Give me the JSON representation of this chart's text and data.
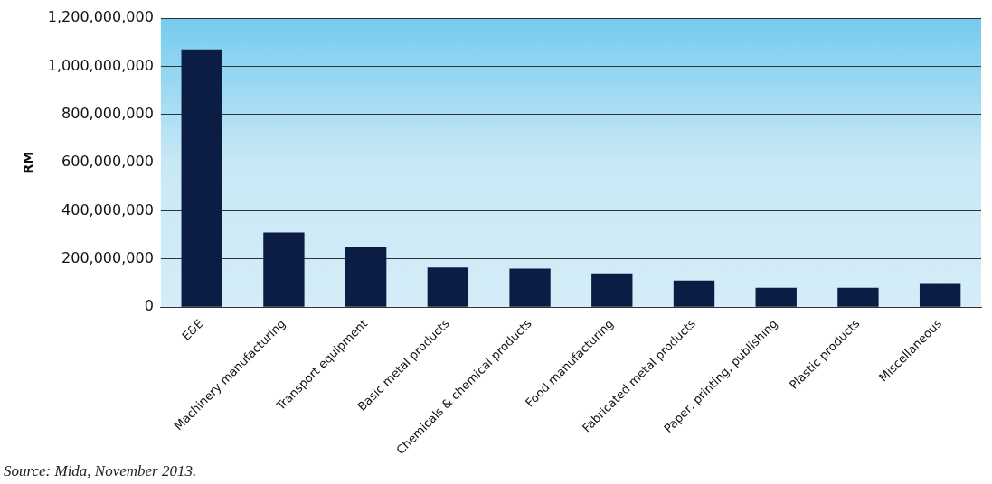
{
  "chart_data": {
    "type": "bar",
    "ylabel": "RM",
    "categories": [
      "E&E",
      "Machinery manufacturing",
      "Transport equipment",
      "Basic metal products",
      "Chemicals & chemical products",
      "Food manufacturing",
      "Fabricated metal products",
      "Paper, printing, publishing",
      "Plastic products",
      "Miscellaneous"
    ],
    "values": [
      1070000000,
      310000000,
      250000000,
      165000000,
      160000000,
      140000000,
      110000000,
      80000000,
      80000000,
      100000000
    ],
    "color": "#0b1d45",
    "ylim": [
      0,
      1200000000
    ],
    "yticks": [
      0,
      {
        "value": 200000000,
        "label": "200,000,000"
      },
      {
        "value": 400000000,
        "label": "400,000,000"
      },
      {
        "value": 600000000,
        "label": "600,000,000"
      },
      {
        "value": 800000000,
        "label": "800,000,000"
      },
      {
        "value": 1000000000,
        "label": "1,000,000,000"
      },
      {
        "value": 1200000000,
        "label": "1,200,000,000"
      }
    ],
    "grid": "y",
    "legend": false,
    "annotations": [
      "Source: Mida, November 2013."
    ]
  }
}
